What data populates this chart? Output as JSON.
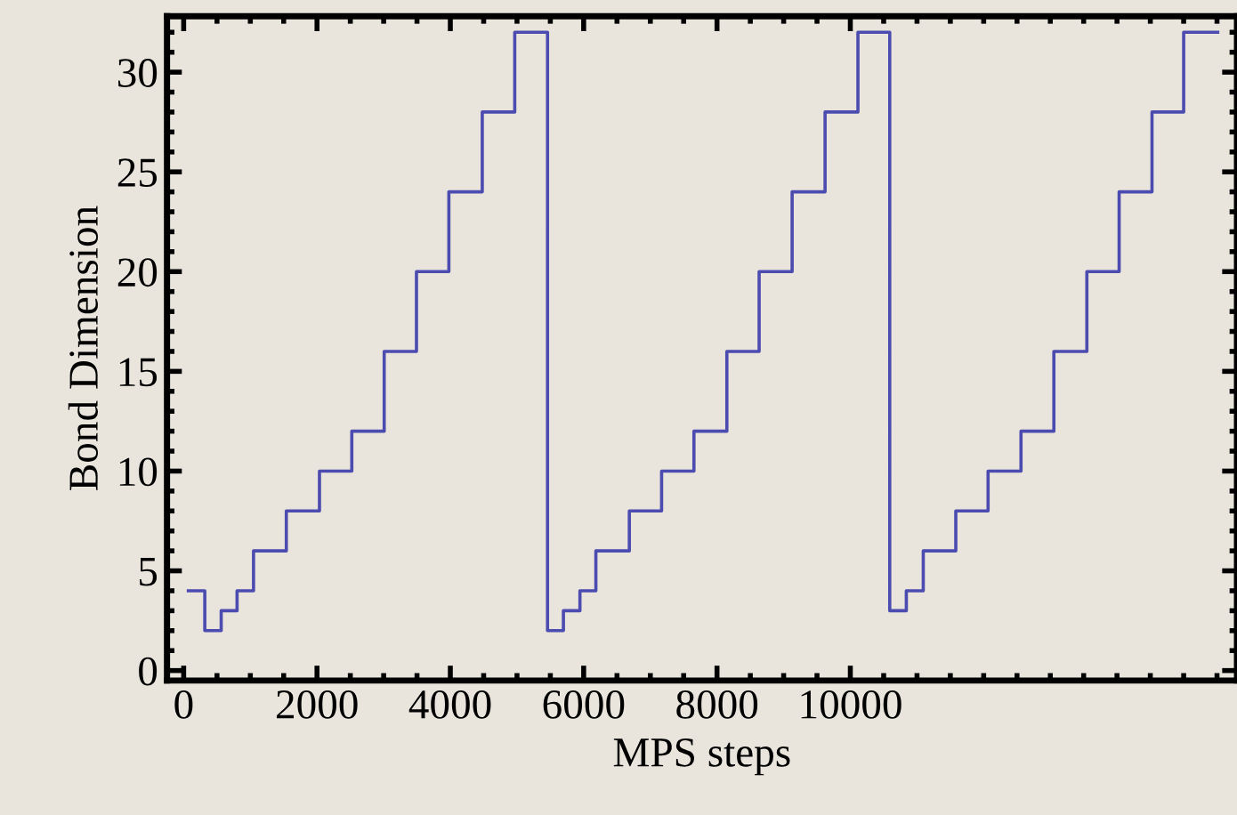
{
  "chart_data": {
    "type": "step",
    "xlabel": "MPS steps",
    "ylabel": "Bond Dimension",
    "x": [
      70,
      317,
      563,
      801,
      1048,
      1540,
      2037,
      2522,
      3008,
      3492,
      3978,
      4479,
      4966,
      5458,
      5696,
      5944,
      6183,
      6685,
      7169,
      7654,
      8148,
      8632,
      9127,
      9621,
      10114,
      10591,
      10840,
      11094,
      11582,
      12066,
      12560,
      13053,
      13548,
      14032,
      14525,
      15000,
      15511
    ],
    "series": [
      {
        "color": "#4b4bb0",
        "values": [
          4,
          2,
          3,
          4,
          6,
          8,
          10,
          12,
          16,
          20,
          24,
          28,
          32,
          2,
          3,
          4,
          6,
          8,
          10,
          12,
          16,
          20,
          24,
          28,
          32,
          3,
          4,
          6,
          8,
          10,
          12,
          16,
          20,
          24,
          28,
          32,
          32
        ]
      }
    ],
    "xlim": [
      -250,
      15800
    ],
    "ylim": [
      -0.5,
      32.8
    ],
    "xticks": [
      0,
      2000,
      4000,
      6000,
      8000,
      10000
    ],
    "yticks": [
      0,
      5,
      10,
      15,
      20,
      25,
      30
    ],
    "grid": false,
    "legend": false,
    "marker": "none",
    "line_style": "solid"
  }
}
